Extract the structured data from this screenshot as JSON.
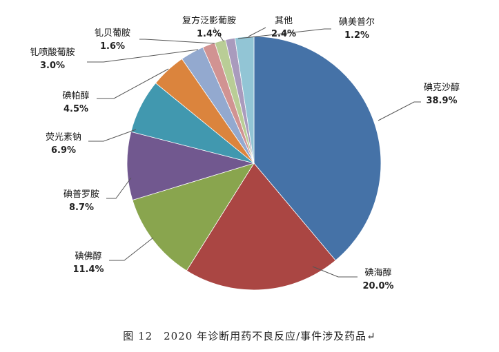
{
  "chart_data": {
    "type": "pie",
    "slices": [
      {
        "label": "碘克沙醇",
        "value": 38.9,
        "pct_text": "38.9%",
        "color": "#4572a7"
      },
      {
        "label": "碘海醇",
        "value": 20.0,
        "pct_text": "20.0%",
        "color": "#aa4643"
      },
      {
        "label": "碘佛醇",
        "value": 11.4,
        "pct_text": "11.4%",
        "color": "#89a54e"
      },
      {
        "label": "碘普罗胺",
        "value": 8.7,
        "pct_text": "8.7%",
        "color": "#71588f"
      },
      {
        "label": "荧光素钠",
        "value": 6.9,
        "pct_text": "6.9%",
        "color": "#4198af"
      },
      {
        "label": "碘帕醇",
        "value": 4.5,
        "pct_text": "4.5%",
        "color": "#db843d"
      },
      {
        "label": "钆喷酸葡胺",
        "value": 3.0,
        "pct_text": "3.0%",
        "color": "#93a9cf"
      },
      {
        "label": "钆贝葡胺",
        "value": 1.6,
        "pct_text": "1.6%",
        "color": "#d19392"
      },
      {
        "label": "复方泛影葡胺",
        "value": 1.4,
        "pct_text": "1.4%",
        "color": "#b9cd96"
      },
      {
        "label": "碘美普尔",
        "value": 1.2,
        "pct_text": "1.2%",
        "color": "#a99bbd"
      },
      {
        "label": "其他",
        "value": 2.4,
        "pct_text": "2.4%",
        "color": "#92c5d5"
      }
    ],
    "legend": "none",
    "start_angle": "12 o'clock",
    "direction": "clockwise"
  },
  "caption": "图 12　2020 年诊断用药不良反应/事件涉及药品↵"
}
